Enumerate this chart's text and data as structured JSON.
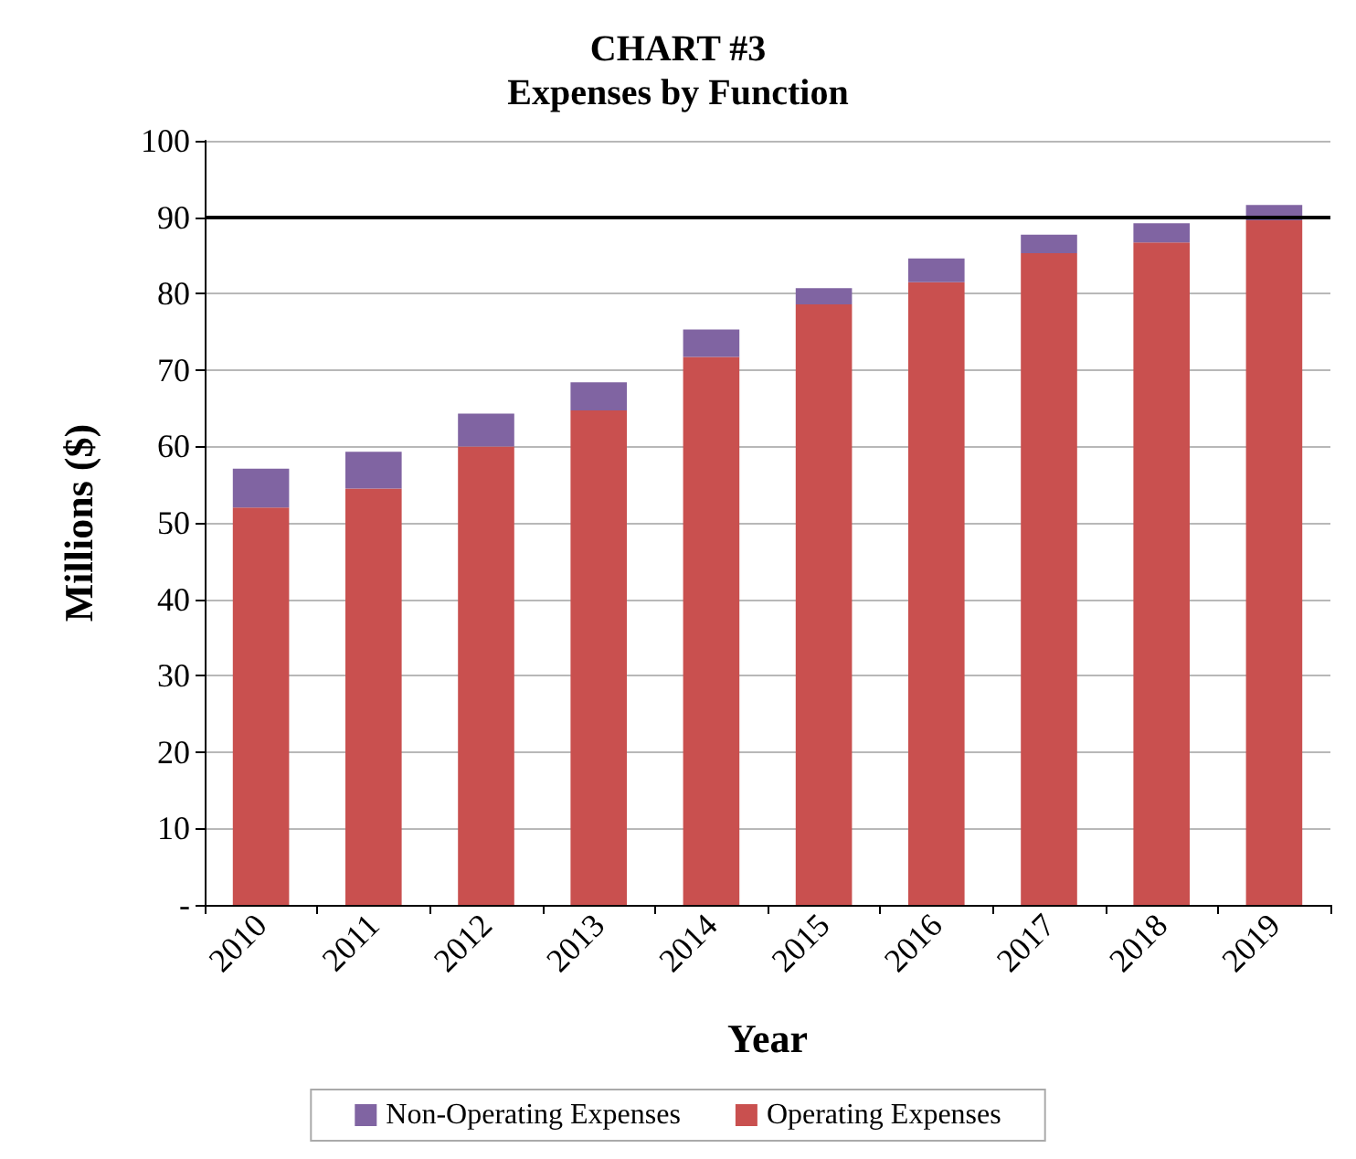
{
  "chart_data": {
    "type": "bar",
    "title": "CHART #3",
    "subtitle": "Expenses by Function",
    "xlabel": "Year",
    "ylabel": "Millions ($)",
    "categories": [
      "2010",
      "2011",
      "2012",
      "2013",
      "2014",
      "2015",
      "2016",
      "2017",
      "2018",
      "2019"
    ],
    "stacked": true,
    "series": [
      {
        "name": "Operating Expenses",
        "color": "#c9504f",
        "values": [
          52.0,
          54.5,
          60.0,
          64.7,
          71.7,
          78.6,
          81.5,
          85.3,
          86.7,
          89.6
        ]
      },
      {
        "name": "Non-Operating Expenses",
        "color": "#8064a2",
        "values": [
          5.1,
          4.8,
          4.3,
          3.7,
          3.6,
          2.1,
          3.1,
          2.4,
          2.5,
          2.0
        ]
      }
    ],
    "ylim": [
      0,
      100
    ],
    "yticks": [
      {
        "value": 0,
        "label": "-"
      },
      10,
      20,
      30,
      40,
      50,
      60,
      70,
      80,
      90,
      100
    ],
    "ref_lines": [
      {
        "axis": "y",
        "value": 90,
        "color": "#000000"
      }
    ],
    "grid": "y",
    "legend": "bottom"
  }
}
